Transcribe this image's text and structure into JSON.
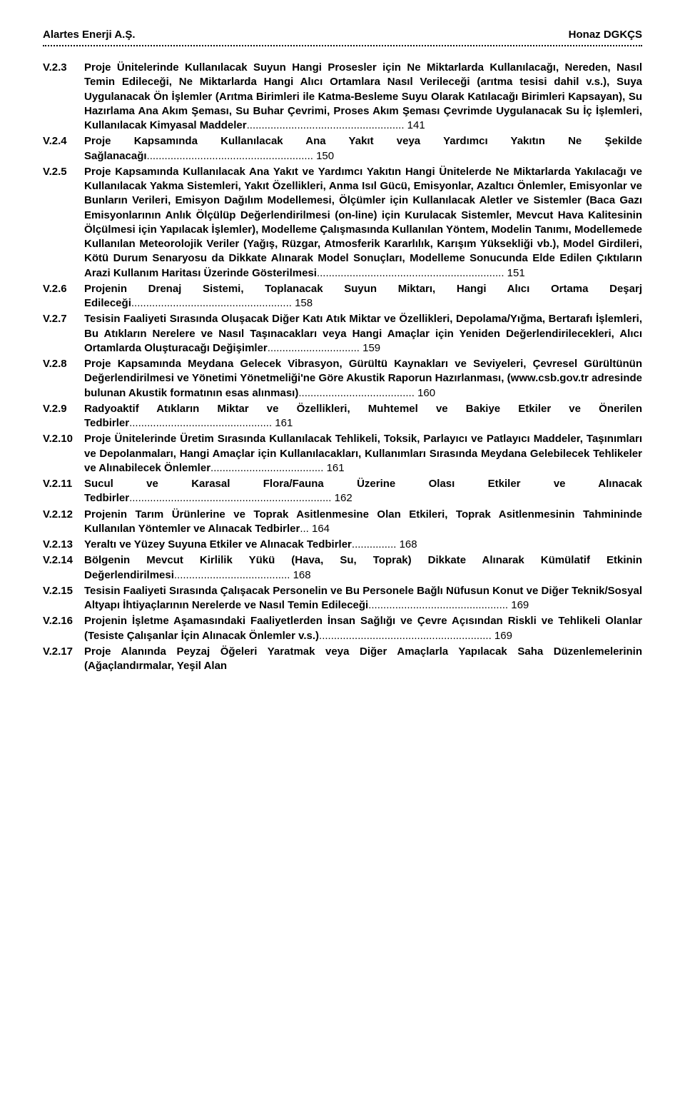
{
  "header": {
    "left": "Alartes Enerji A.Ş.",
    "right": "Honaz DGKÇS"
  },
  "toc": [
    {
      "num": "V.2.3",
      "title": "Proje Ünitelerinde Kullanılacak Suyun Hangi Prosesler için Ne Miktarlarda Kullanılacağı, Nereden, Nasıl Temin Edileceği, Ne Miktarlarda Hangi Alıcı Ortamlara Nasıl Verileceği (arıtma tesisi dahil v.s.), Suya Uygulanacak Ön İşlemler (Arıtma Birimleri ile Katma-Besleme Suyu Olarak Katılacağı Birimleri Kapsayan), Su Hazırlama Ana Akım Şeması, Su Buhar Çevrimi, Proses Akım Şeması Çevrimde Uygulanacak Su İç İşlemleri, Kullanılacak Kimyasal Maddeler",
      "page": "141"
    },
    {
      "num": "V.2.4",
      "title": "Proje Kapsamında Kullanılacak Ana Yakıt veya Yardımcı Yakıtın Ne Şekilde Sağlanacağı",
      "page": "150"
    },
    {
      "num": "V.2.5",
      "title": "Proje Kapsamında Kullanılacak Ana Yakıt ve Yardımcı Yakıtın Hangi Ünitelerde Ne Miktarlarda Yakılacağı ve Kullanılacak Yakma Sistemleri, Yakıt Özellikleri, Anma Isıl Gücü, Emisyonlar, Azaltıcı Önlemler, Emisyonlar ve  Bunların Verileri, Emisyon Dağılım Modellemesi, Ölçümler için Kullanılacak Aletler ve Sistemler (Baca Gazı Emisyonlarının Anlık Ölçülüp Değerlendirilmesi (on-line) için Kurulacak Sistemler, Mevcut Hava Kalitesinin Ölçülmesi için Yapılacak İşlemler), Modelleme Çalışmasında Kullanılan Yöntem, Modelin Tanımı, Modellemede Kullanılan Meteorolojik Veriler (Yağış, Rüzgar, Atmosferik Kararlılık, Karışım Yüksekliği vb.), Model Girdileri, Kötü Durum Senaryosu da Dikkate Alınarak Model Sonuçları, Modelleme Sonucunda Elde Edilen Çıktıların Arazi Kullanım Haritası Üzerinde Gösterilmesi",
      "page": "151"
    },
    {
      "num": "V.2.6",
      "title": "Projenin Drenaj Sistemi, Toplanacak Suyun Miktarı, Hangi Alıcı Ortama Deşarj Edileceği",
      "page": "158"
    },
    {
      "num": "V.2.7",
      "title": "Tesisin Faaliyeti Sırasında Oluşacak Diğer Katı Atık Miktar ve Özellikleri, Depolama/Yığma, Bertarafı İşlemleri, Bu Atıkların Nerelere ve Nasıl Taşınacakları veya Hangi Amaçlar için Yeniden Değerlendirilecekleri, Alıcı Ortamlarda Oluşturacağı Değişimler",
      "page": "159"
    },
    {
      "num": "V.2.8",
      "title": "Proje Kapsamında Meydana Gelecek Vibrasyon, Gürültü Kaynakları ve Seviyeleri, Çevresel Gürültünün Değerlendirilmesi ve Yönetimi Yönetmeliği'ne Göre Akustik Raporun Hazırlanması, (www.csb.gov.tr adresinde bulunan Akustik formatının esas alınması)",
      "page": "160"
    },
    {
      "num": "V.2.9",
      "title": "Radyoaktif Atıkların Miktar ve Özellikleri, Muhtemel ve Bakiye Etkiler ve Önerilen Tedbirler",
      "page": "161"
    },
    {
      "num": "V.2.10",
      "title": "Proje Ünitelerinde Üretim Sırasında Kullanılacak Tehlikeli, Toksik, Parlayıcı ve Patlayıcı Maddeler, Taşınımları ve Depolanmaları, Hangi Amaçlar için Kullanılacakları, Kullanımları Sırasında Meydana Gelebilecek Tehlikeler ve Alınabilecek Önlemler",
      "page": "161"
    },
    {
      "num": "V.2.11",
      "title": "Sucul ve Karasal Flora/Fauna Üzerine Olası Etkiler ve Alınacak Tedbirler",
      "page": "162"
    },
    {
      "num": "V.2.12",
      "title": "Projenin Tarım Ürünlerine ve Toprak Asitlenmesine Olan Etkileri, Toprak Asitlenmesinin Tahmininde Kullanılan Yöntemler ve Alınacak Tedbirler",
      "page": "164"
    },
    {
      "num": "V.2.13",
      "title": "Yeraltı ve Yüzey Suyuna Etkiler ve Alınacak Tedbirler",
      "page": "168"
    },
    {
      "num": "V.2.14",
      "title": "Bölgenin Mevcut Kirlilik Yükü (Hava, Su, Toprak) Dikkate Alınarak Kümülatif Etkinin Değerlendirilmesi",
      "page": "168"
    },
    {
      "num": "V.2.15",
      "title": "Tesisin Faaliyeti Sırasında Çalışacak Personelin ve Bu Personele Bağlı Nüfusun Konut ve Diğer Teknik/Sosyal Altyapı İhtiyaçlarının Nerelerde ve Nasıl Temin Edileceği",
      "page": "169"
    },
    {
      "num": "V.2.16",
      "title": "Projenin İşletme Aşamasındaki Faaliyetlerden İnsan Sağlığı ve Çevre Açısından Riskli ve Tehlikeli Olanlar (Tesiste Çalışanlar İçin Alınacak Önlemler v.s.)",
      "page": "169"
    },
    {
      "num": "V.2.17",
      "title": "Proje Alanında Peyzaj Öğeleri Yaratmak veya Diğer Amaçlarla Yapılacak Saha Düzenlemelerinin (Ağaçlandırmalar, Yeşil Alan",
      "page": ""
    }
  ]
}
